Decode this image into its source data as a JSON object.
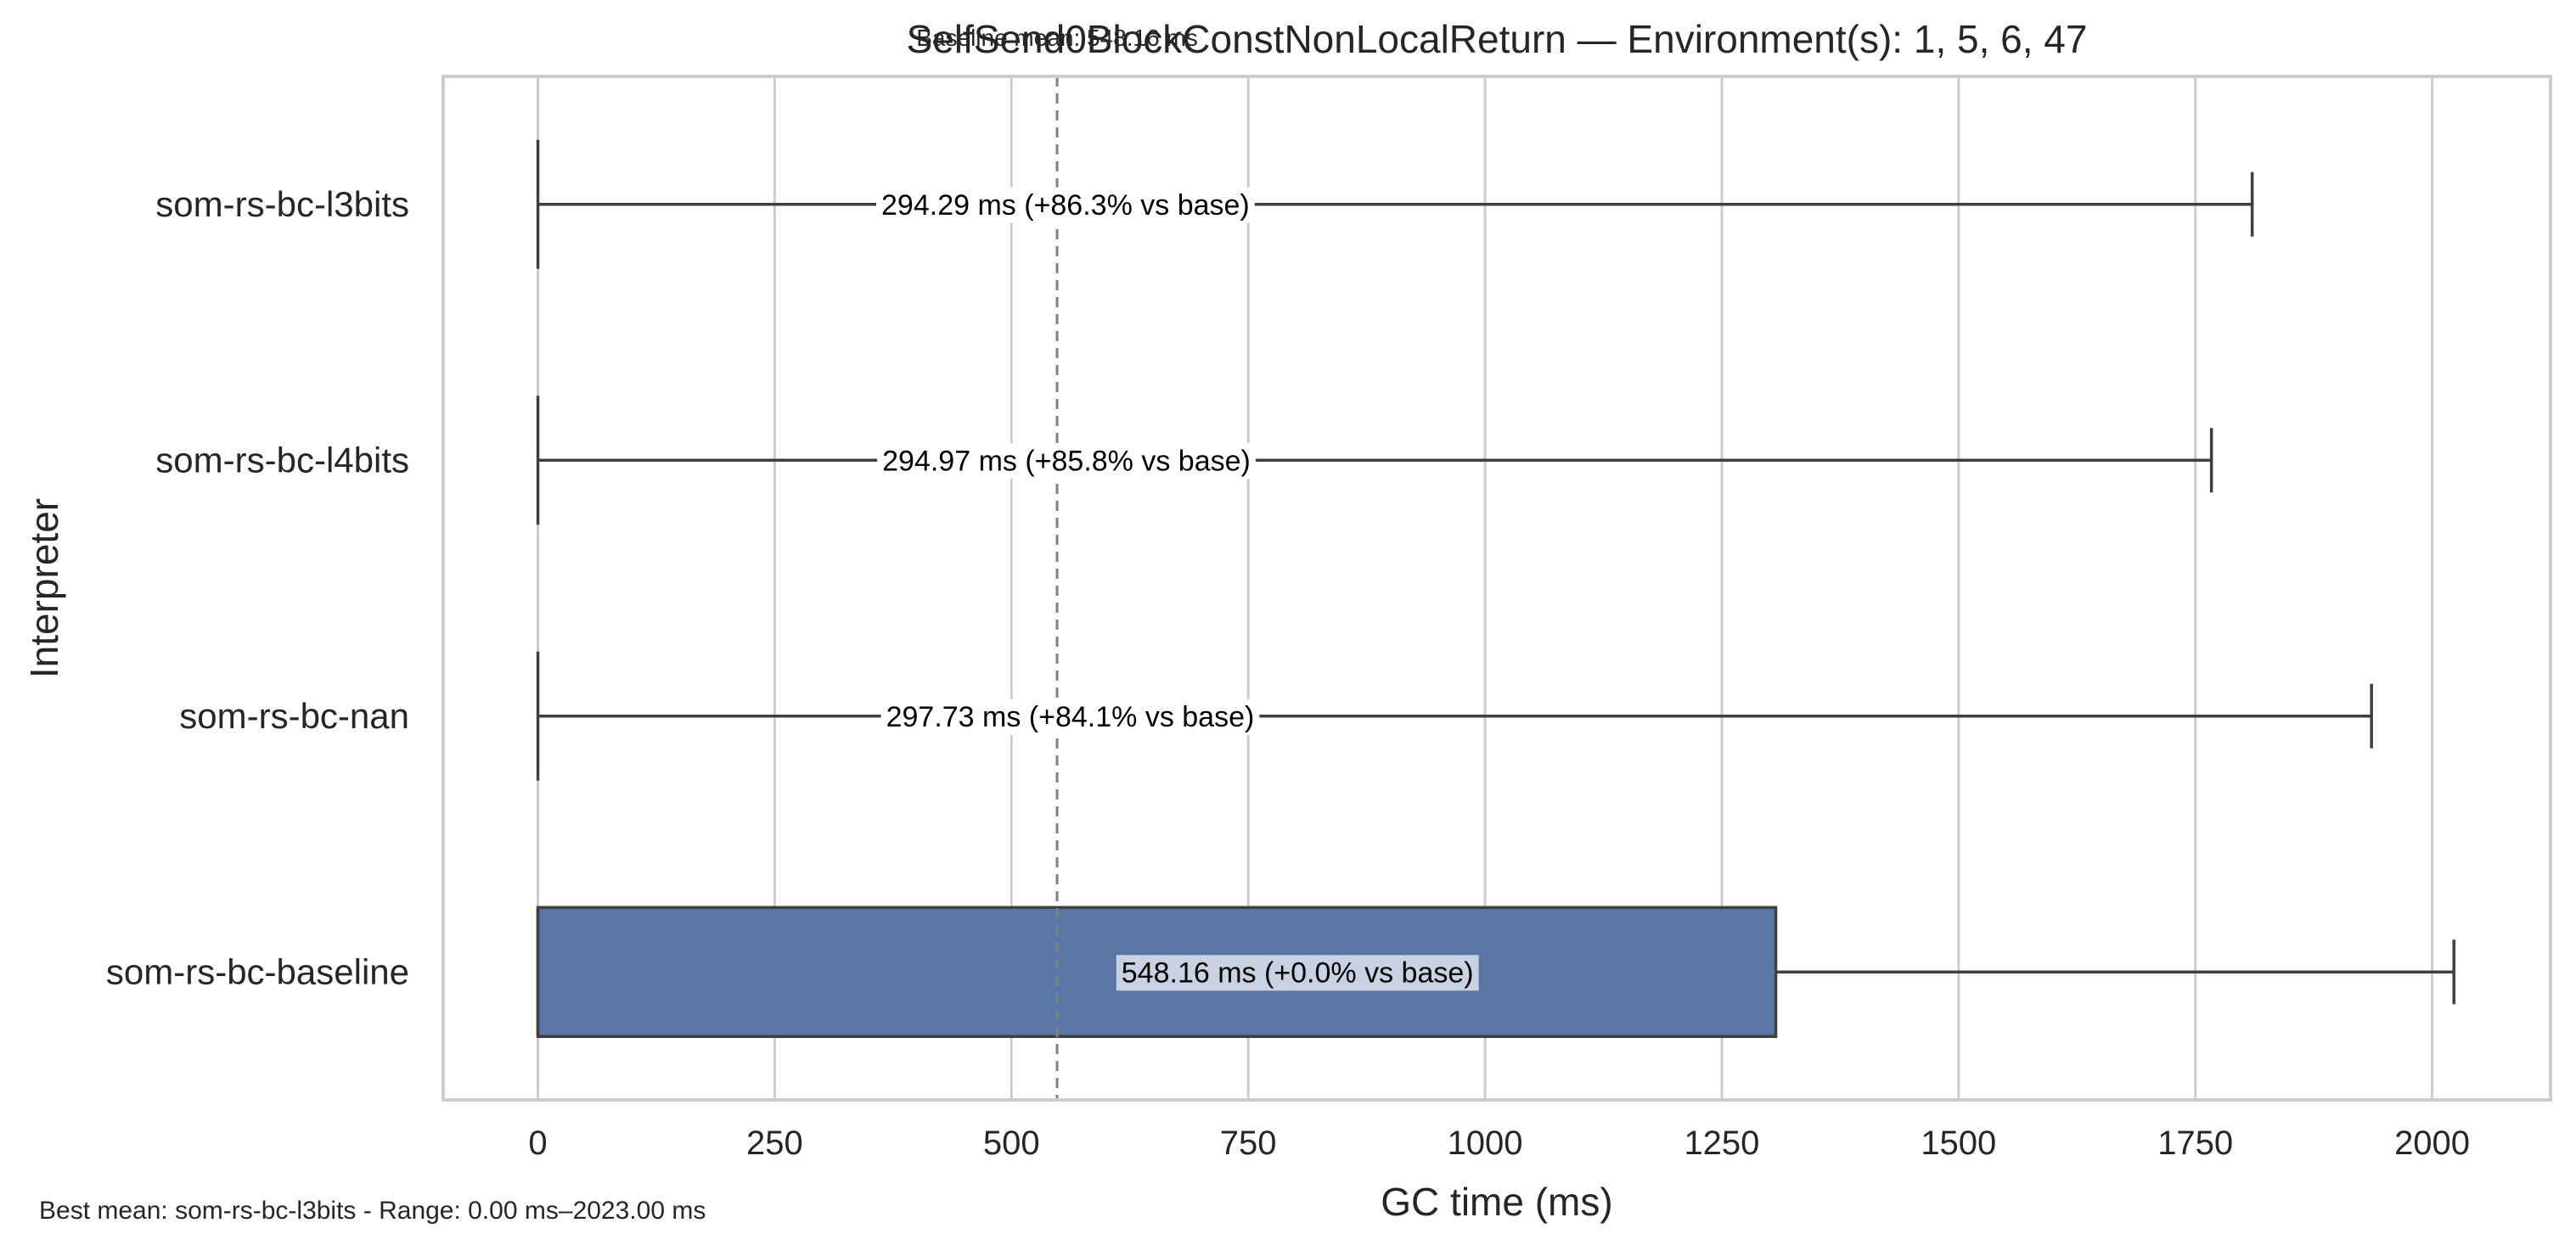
{
  "chart_data": {
    "type": "bar",
    "orientation": "horizontal",
    "title": "SelfSend0BlockConstNonLocalReturn — Environment(s): 1, 5, 6, 47",
    "xlabel": "GC time (ms)",
    "ylabel": "Interpreter",
    "xlim": [
      -100,
      2125
    ],
    "xticks": [
      0,
      250,
      500,
      750,
      1000,
      1250,
      1500,
      1750,
      2000
    ],
    "grid": true,
    "categories": [
      "som-rs-bc-l3bits",
      "som-rs-bc-l4bits",
      "som-rs-bc-nan",
      "som-rs-bc-baseline"
    ],
    "boxes": [
      {
        "category": "som-rs-bc-l3bits",
        "q1": 0,
        "q3": 0,
        "whisker_low": 0,
        "whisker_high": 1810,
        "label": "294.29 ms  (+86.3% vs base)",
        "label_x": 557
      },
      {
        "category": "som-rs-bc-l4bits",
        "q1": 0,
        "q3": 0,
        "whisker_low": 0,
        "whisker_high": 1767,
        "label": "294.97 ms  (+85.8% vs base)",
        "label_x": 558
      },
      {
        "category": "som-rs-bc-nan",
        "q1": 0,
        "q3": 0,
        "whisker_low": 0,
        "whisker_high": 1936,
        "label": "297.73 ms  (+84.1% vs base)",
        "label_x": 562
      },
      {
        "category": "som-rs-bc-baseline",
        "q1": 0,
        "q3": 1307,
        "whisker_low": 0,
        "whisker_high": 2023,
        "label": "548.16 ms  (+0.0% vs base)",
        "label_x": 802
      }
    ],
    "reference_line": {
      "value": 548.16,
      "label": "Baseline mean: 548.16 ms"
    },
    "footnote": "Best mean: som-rs-bc-l3bits - Range: 0.00 ms–2023.00 ms",
    "colors": {
      "box": "#5a76a5",
      "edge": "#3f3f3f",
      "grid": "#cccccc",
      "spine": "#cccccc",
      "reference": "#808080",
      "label_bg": "#ffffff",
      "label_bg_highlight": "#c9d2e2"
    }
  }
}
